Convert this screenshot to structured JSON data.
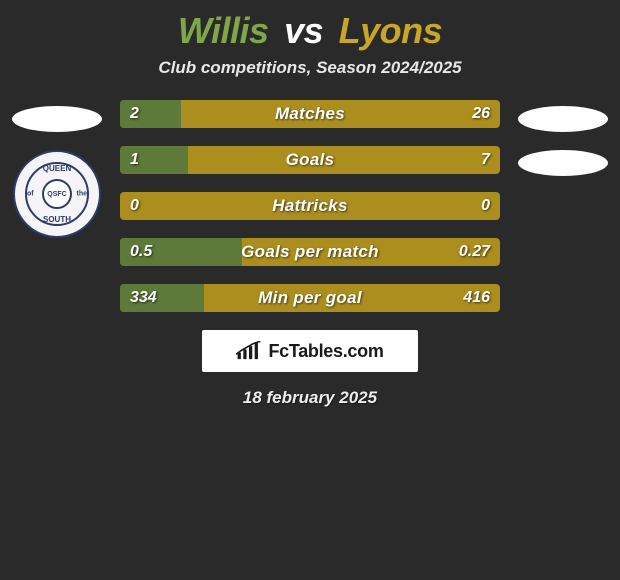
{
  "colors": {
    "background": "#2a2a2a",
    "p1_accent": "#7ea847",
    "p2_accent": "#c9a627",
    "vs_color": "#ffffff",
    "p1_bar": "#5d7a3a",
    "p2_bar": "#ab8e1e",
    "text": "#ffffff"
  },
  "title": {
    "p1": "Willis",
    "vs": "vs",
    "p2": "Lyons",
    "fontsize": 36
  },
  "subtitle": "Club competitions, Season 2024/2025",
  "club_logo": {
    "top": "QUEEN",
    "bottom": "SOUTH",
    "left": "of",
    "right": "the",
    "center": "QSFC"
  },
  "stats": [
    {
      "label": "Matches",
      "v1": "2",
      "v2": "26",
      "left_pct": 16
    },
    {
      "label": "Goals",
      "v1": "1",
      "v2": "7",
      "left_pct": 18
    },
    {
      "label": "Hattricks",
      "v1": "0",
      "v2": "0",
      "left_pct": 0
    },
    {
      "label": "Goals per match",
      "v1": "0.5",
      "v2": "0.27",
      "left_pct": 32
    },
    {
      "label": "Min per goal",
      "v1": "334",
      "v2": "416",
      "left_pct": 22
    }
  ],
  "bar_style": {
    "height": 28,
    "gap": 18,
    "label_fontsize": 17,
    "value_fontsize": 16
  },
  "brand": "FcTables.com",
  "date": "18 february 2025"
}
